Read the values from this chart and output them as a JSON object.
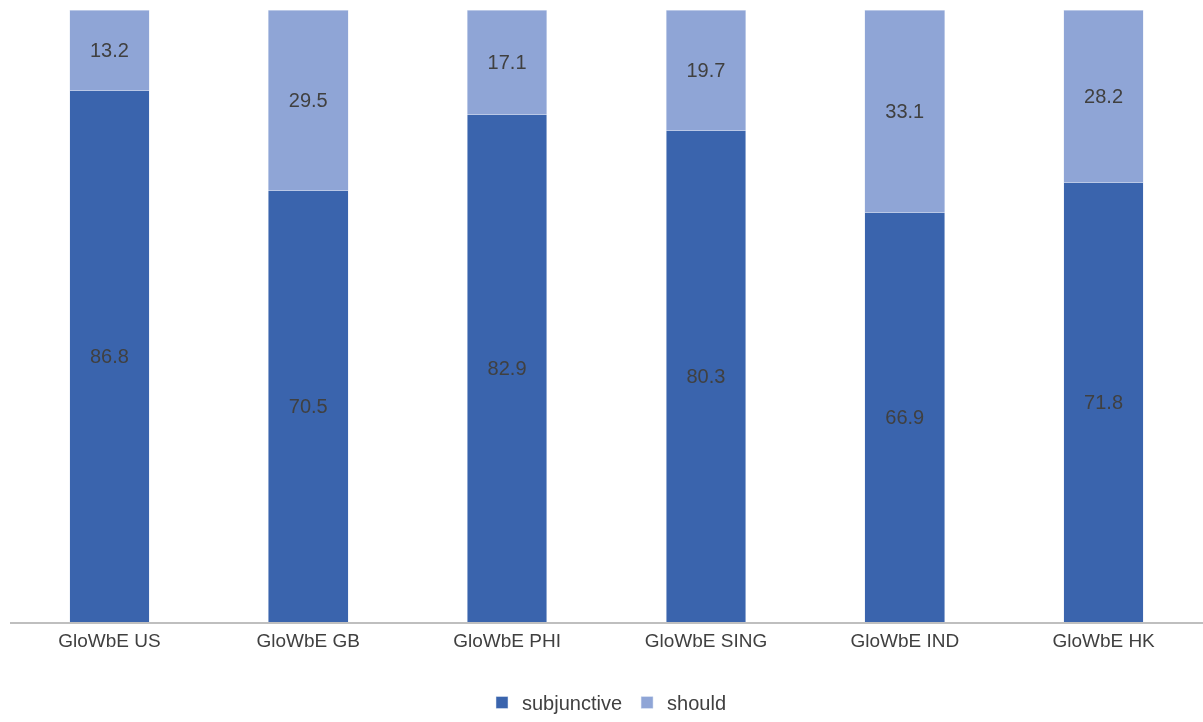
{
  "chart_data": {
    "type": "bar",
    "stacked": true,
    "data_labels": true,
    "legend": "bottom",
    "tick_labels": "x",
    "ylim": [
      0,
      100
    ],
    "categories": [
      "GloWbE US",
      "GloWbE GB",
      "GloWbE PHI",
      "GloWbE SING",
      "GloWbE IND",
      "GloWbE HK"
    ],
    "series": [
      {
        "name": "subjunctive",
        "color": "#3a64ad",
        "values": [
          86.8,
          70.5,
          82.9,
          80.3,
          66.9,
          71.8
        ]
      },
      {
        "name": "should",
        "color": "#8fa5d6",
        "values": [
          13.2,
          29.5,
          17.1,
          19.7,
          33.1,
          28.2
        ]
      }
    ]
  }
}
